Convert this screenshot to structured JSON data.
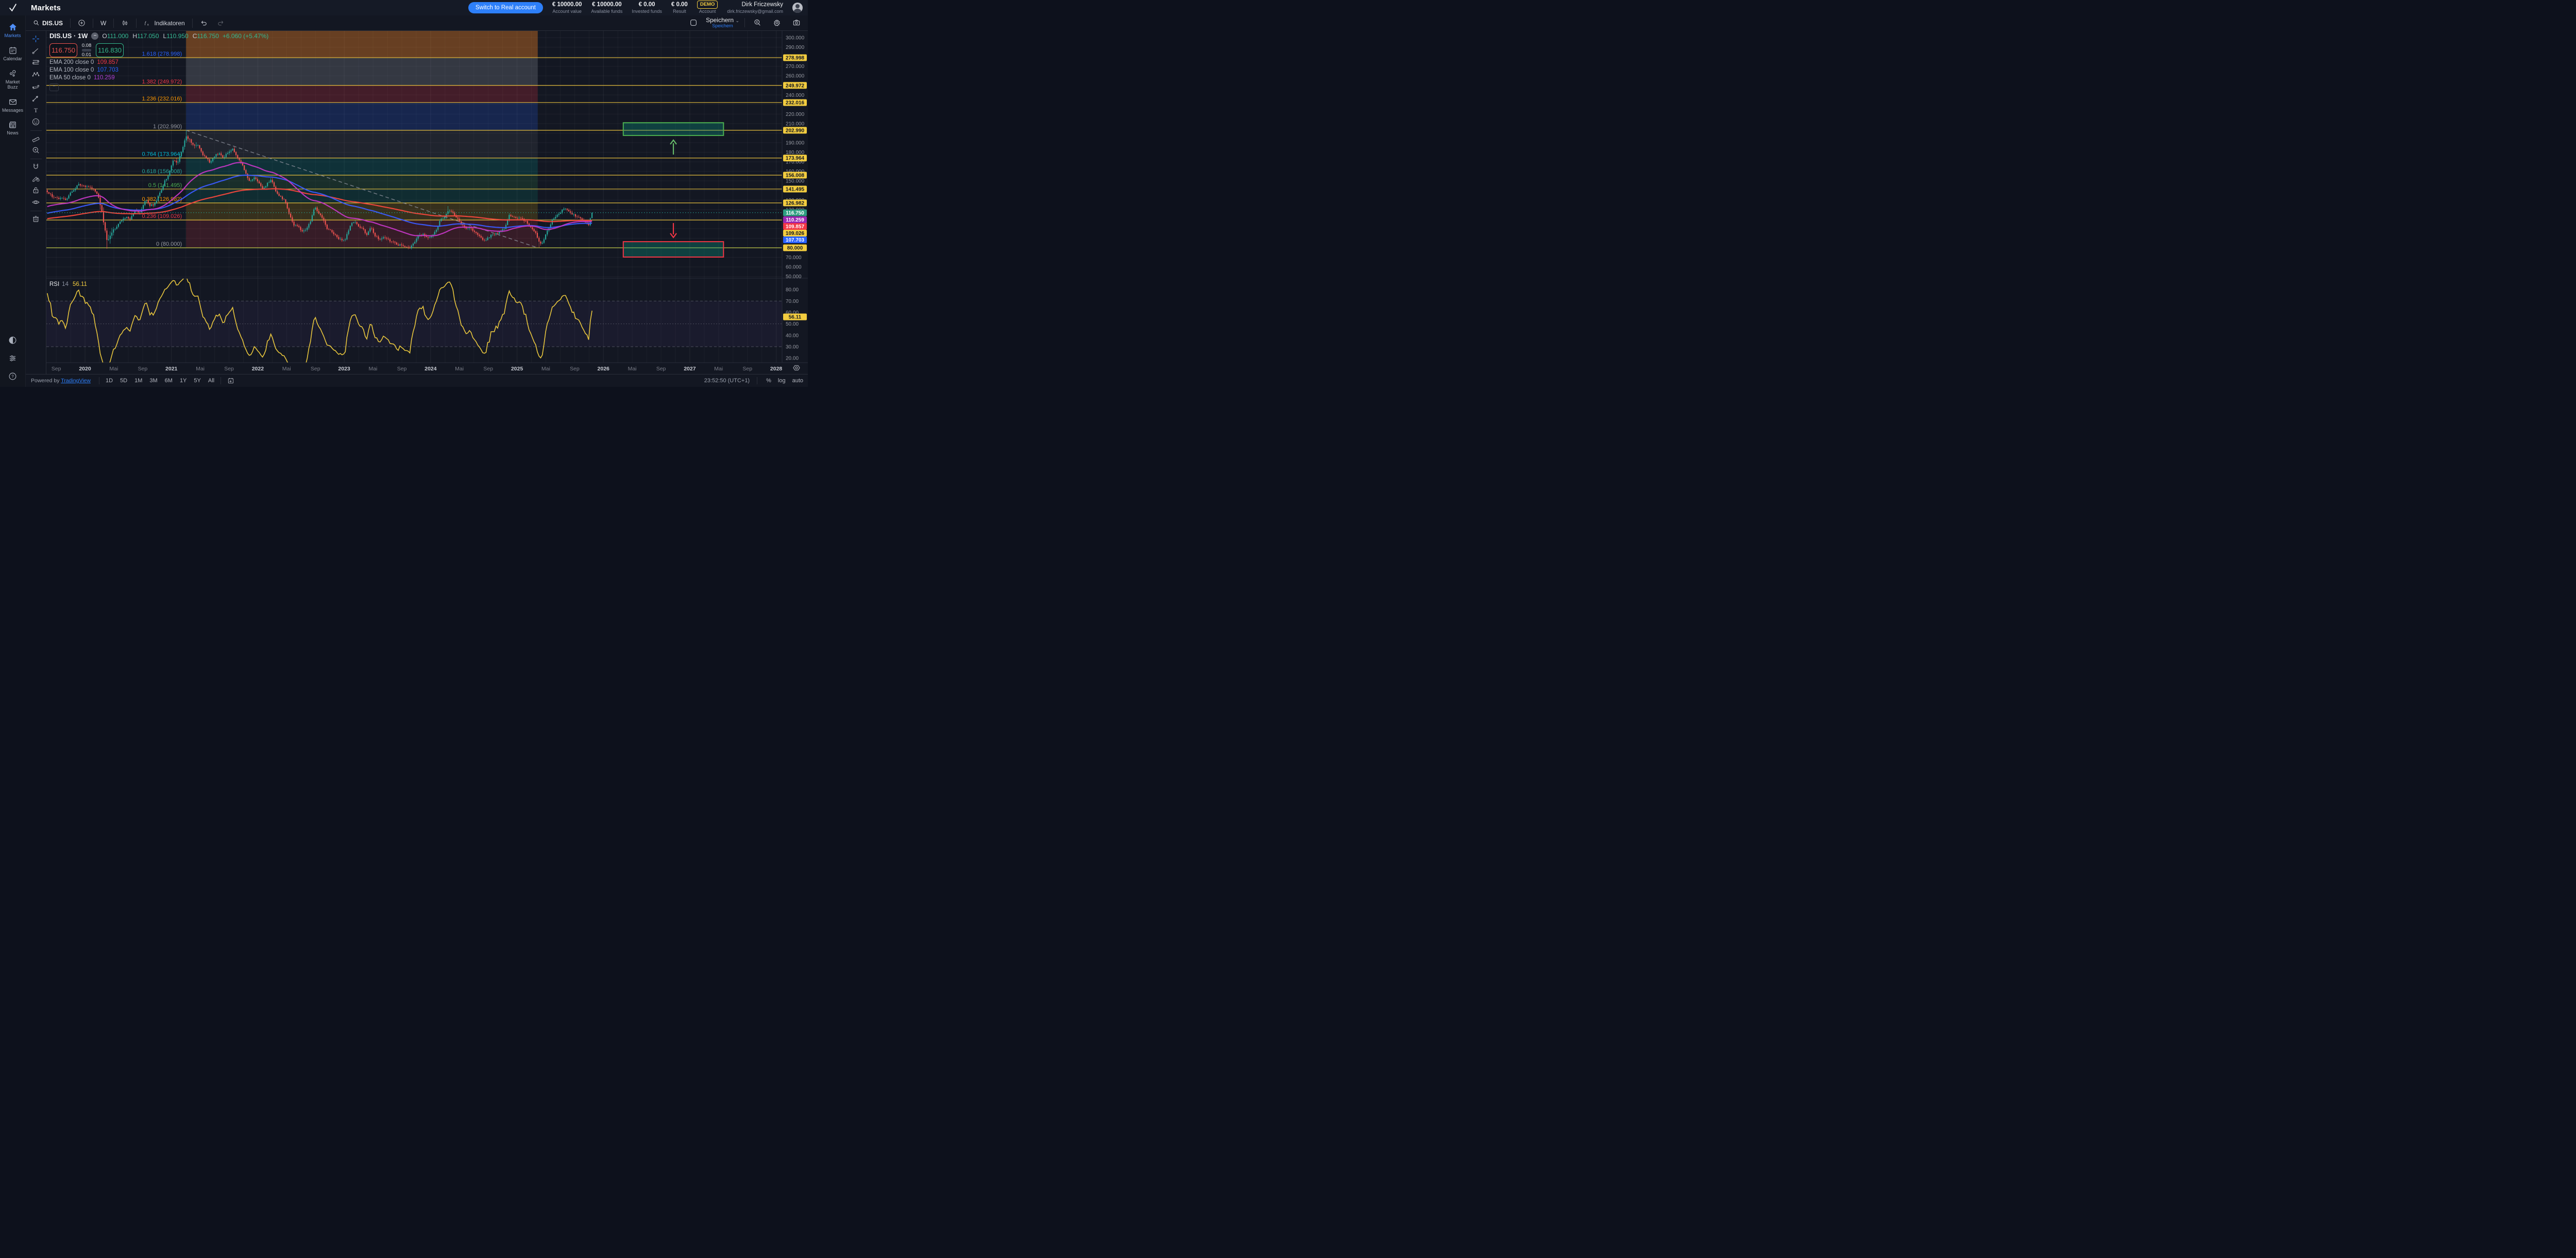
{
  "app": {
    "title": "Markets"
  },
  "header": {
    "switch_button": "Switch to Real account",
    "stats": [
      {
        "value": "€ 10000.00",
        "label": "Account value"
      },
      {
        "value": "€ 10000.00",
        "label": "Available funds"
      },
      {
        "value": "€ 0.00",
        "label": "Invested funds"
      },
      {
        "value": "€ 0.00",
        "label": "Result"
      }
    ],
    "demo_badge": "DEMO",
    "demo_label": "Account",
    "user": {
      "name": "Dirk Friczewsky",
      "email": "dirk.friczewsky@gmail.com"
    }
  },
  "sidebar": {
    "items": [
      {
        "label": "Markets",
        "icon": "home",
        "active": true
      },
      {
        "label": "Calendar",
        "icon": "calendar",
        "active": false
      },
      {
        "label": "Market Buzz",
        "icon": "buzz",
        "active": false
      },
      {
        "label": "Messages",
        "icon": "envelope",
        "active": false
      },
      {
        "label": "News",
        "icon": "news",
        "active": false
      }
    ],
    "bottom_icons": [
      "theme-toggle",
      "preferences",
      "help"
    ]
  },
  "toolbar": {
    "symbol": "DIS.US",
    "interval": "W",
    "indicators_label": "Indikatoren",
    "save_label": "Speichern",
    "save_sub_label": "Speichern"
  },
  "legend": {
    "symbol": "DIS.US · 1W",
    "ohlc": [
      [
        "O",
        "111.000"
      ],
      [
        "H",
        "117.050"
      ],
      [
        "L",
        "110.950"
      ],
      [
        "C",
        "116.750"
      ]
    ],
    "change": "+6.060 (+5.47%)",
    "sell": "116.750",
    "buy": "116.830",
    "spread_top": "0.08",
    "spread_bottom": "0.01",
    "emas": [
      {
        "label": "EMA 200 close 0",
        "value": "109.857",
        "color": "#f23645"
      },
      {
        "label": "EMA 100 close 0",
        "value": "107.703",
        "color": "#2962ff"
      },
      {
        "label": "EMA 50 close 0",
        "value": "110.259",
        "color": "#b13fd4"
      }
    ]
  },
  "rsi_legend": {
    "name": "RSI",
    "period": "14",
    "value": "56.11"
  },
  "drawbar": {
    "tools": [
      "crosshair",
      "trend-line",
      "fib-retracement",
      "xabcd-pattern",
      "projection",
      "arrow-marker",
      "text",
      "emoji",
      "sep",
      "ruler",
      "zoom-in",
      "sep",
      "magnet",
      "drawing-mode",
      "lock-all",
      "hide-all",
      "sep",
      "remove-all"
    ]
  },
  "bottom": {
    "powered_prefix": "Powered by",
    "powered_link": "TradingView",
    "ranges": [
      "1D",
      "5D",
      "1M",
      "3M",
      "6M",
      "1Y",
      "5Y",
      "All"
    ],
    "clock": "23:52:50 (UTC+1)",
    "scale_buttons": [
      "%",
      "log",
      "auto"
    ]
  },
  "chart_data": {
    "type": "candlestick",
    "symbol": "DIS.US",
    "interval": "1W",
    "title": "Disney weekly chart with Fibonacci retracement, EMAs and RSI",
    "x_domain": [
      2019.55,
      2028.08
    ],
    "ylim_main": [
      48,
      308
    ],
    "up_color": "#26a69a",
    "down_color": "#ef5350",
    "grid": true,
    "last_price": 116.75,
    "last_price_color": "#26a69a",
    "price_ticks": [
      300,
      290,
      270,
      260,
      240,
      220,
      210,
      190,
      180,
      170,
      160,
      150,
      130,
      120,
      90,
      70,
      60,
      50
    ],
    "x_ticks": [
      {
        "t": 2019.667,
        "label": "Sep",
        "year": false
      },
      {
        "t": 2020,
        "label": "2020",
        "year": true
      },
      {
        "t": 2020.333,
        "label": "Mai",
        "year": false
      },
      {
        "t": 2020.667,
        "label": "Sep",
        "year": false
      },
      {
        "t": 2021,
        "label": "2021",
        "year": true
      },
      {
        "t": 2021.333,
        "label": "Mai",
        "year": false
      },
      {
        "t": 2021.667,
        "label": "Sep",
        "year": false
      },
      {
        "t": 2022,
        "label": "2022",
        "year": true
      },
      {
        "t": 2022.333,
        "label": "Mai",
        "year": false
      },
      {
        "t": 2022.667,
        "label": "Sep",
        "year": false
      },
      {
        "t": 2023,
        "label": "2023",
        "year": true
      },
      {
        "t": 2023.333,
        "label": "Mai",
        "year": false
      },
      {
        "t": 2023.667,
        "label": "Sep",
        "year": false
      },
      {
        "t": 2024,
        "label": "2024",
        "year": true
      },
      {
        "t": 2024.333,
        "label": "Mai",
        "year": false
      },
      {
        "t": 2024.667,
        "label": "Sep",
        "year": false
      },
      {
        "t": 2025,
        "label": "2025",
        "year": true
      },
      {
        "t": 2025.333,
        "label": "Mai",
        "year": false
      },
      {
        "t": 2025.667,
        "label": "Sep",
        "year": false
      },
      {
        "t": 2026,
        "label": "2026",
        "year": true
      },
      {
        "t": 2026.333,
        "label": "Mai",
        "year": false
      },
      {
        "t": 2026.667,
        "label": "Sep",
        "year": false
      },
      {
        "t": 2027,
        "label": "2027",
        "year": true
      },
      {
        "t": 2027.333,
        "label": "Mai",
        "year": false
      },
      {
        "t": 2027.667,
        "label": "Sep",
        "year": false
      },
      {
        "t": 2028,
        "label": "2028",
        "year": true
      }
    ],
    "fib": {
      "t1": 2021.17,
      "t2": 2025.24,
      "line_color": "#f0c63e",
      "levels": [
        {
          "label": "1.618 (278.998)",
          "price": 278.998,
          "color": "#2962ff"
        },
        {
          "label": "1.382 (249.972)",
          "price": 249.972,
          "color": "#f23645"
        },
        {
          "label": "1.236 (232.016)",
          "price": 232.016,
          "color": "#ff9800"
        },
        {
          "label": "1 (202.990)",
          "price": 202.99,
          "color": "#9598a1"
        },
        {
          "label": "0.764 (173.964)",
          "price": 173.964,
          "color": "#00bcd4"
        },
        {
          "label": "0.618 (156.008)",
          "price": 156.008,
          "color": "#26a69a"
        },
        {
          "label": "0.5 (141.495)",
          "price": 141.495,
          "color": "#4caf50"
        },
        {
          "label": "0.382 (126.982)",
          "price": 126.982,
          "color": "#ff9800"
        },
        {
          "label": "0.236 (109.026)",
          "price": 109.026,
          "color": "#f23645"
        },
        {
          "label": "0 (80.000)",
          "price": 80.0,
          "color": "#9598a1",
          "line_color": "#cbd34b"
        }
      ],
      "bands": [
        {
          "top": 308,
          "bottom": 278.998,
          "color": "rgba(230,126,34,0.40)"
        },
        {
          "top": 278.998,
          "bottom": 249.972,
          "color": "rgba(128,131,142,0.30)"
        },
        {
          "top": 249.972,
          "bottom": 232.016,
          "color": "rgba(242,54,69,0.22)"
        },
        {
          "top": 232.016,
          "bottom": 202.99,
          "color": "rgba(41,98,255,0.20)"
        },
        {
          "top": 202.99,
          "bottom": 173.964,
          "color": "rgba(128,131,142,0.12)"
        },
        {
          "top": 173.964,
          "bottom": 156.008,
          "color": "rgba(0,170,160,0.18)"
        },
        {
          "top": 156.008,
          "bottom": 141.495,
          "color": "rgba(60,170,90,0.16)"
        },
        {
          "top": 141.495,
          "bottom": 126.982,
          "color": "rgba(8,153,129,0.16)"
        },
        {
          "top": 126.982,
          "bottom": 109.026,
          "color": "rgba(255,193,7,0.15)"
        },
        {
          "top": 109.026,
          "bottom": 80.0,
          "color": "rgba(242,54,69,0.16)"
        }
      ]
    },
    "trendline": {
      "t1": 2021.17,
      "p1": 202.99,
      "t2": 2025.24,
      "p2": 80.0,
      "color": "#8b8f9a"
    },
    "shapes": {
      "green_box": {
        "t1": 2026.23,
        "t2": 2027.39,
        "p1": 197.6,
        "p2": 210.9,
        "stroke": "#4caf50",
        "fill": "rgba(8,153,129,0.32)"
      },
      "red_box": {
        "t1": 2026.23,
        "t2": 2027.39,
        "p1": 70.3,
        "p2": 86.4,
        "stroke": "#f23645",
        "fill": "rgba(8,153,129,0.32)"
      },
      "up_arrow": {
        "t": 2026.81,
        "p_from": 177.6,
        "p_to": 192.7,
        "color": "#66bb6a"
      },
      "down_arrow": {
        "t": 2026.81,
        "p_from": 105.9,
        "p_to": 90.8,
        "color": "#f23645"
      }
    },
    "emas": [
      {
        "period": 200,
        "color": "#f5483d",
        "last": 109.857
      },
      {
        "period": 100,
        "color": "#3b5bff",
        "last": 107.703
      },
      {
        "period": 50,
        "color": "#c437c4",
        "last": 110.259
      }
    ],
    "rsi": {
      "period": 14,
      "last": 56.11,
      "color": "#e8c63e",
      "bands": [
        70,
        50,
        30
      ],
      "ticks": [
        80,
        70,
        60,
        50,
        40,
        30,
        20
      ]
    },
    "axis_chips_stacked": [
      {
        "text": "116.750",
        "y": 353,
        "bg": "#2e9e81",
        "fg": "#ffffff"
      },
      {
        "text": "110.259",
        "y": 366.5,
        "bg": "#9c27b0",
        "fg": "#ffffff"
      },
      {
        "text": "109.857",
        "y": 379.5,
        "bg": "#f23645",
        "fg": "#ffffff"
      },
      {
        "text": "109.026",
        "y": 392.5,
        "bg": "#f2cc3f",
        "fg": "#131722"
      },
      {
        "text": "107.703",
        "y": 405.5,
        "bg": "#2962ff",
        "fg": "#ffffff"
      }
    ],
    "rsi_chip": {
      "text": "56.11",
      "bg": "#f2cc3f",
      "fg": "#131722"
    },
    "anchors": [
      [
        2015.5,
        102
      ],
      [
        2016.2,
        96
      ],
      [
        2016.8,
        99
      ],
      [
        2017.4,
        107
      ],
      [
        2018.0,
        104
      ],
      [
        2018.6,
        110
      ],
      [
        2019.0,
        111
      ],
      [
        2019.25,
        117
      ],
      [
        2019.35,
        133
      ],
      [
        2019.45,
        140
      ],
      [
        2019.54,
        141
      ],
      [
        2019.62,
        134
      ],
      [
        2019.7,
        131.5
      ],
      [
        2019.78,
        131
      ],
      [
        2019.84,
        138
      ],
      [
        2019.92,
        146
      ],
      [
        2019.98,
        145
      ],
      [
        2020.04,
        144
      ],
      [
        2020.1,
        141
      ],
      [
        2020.15,
        135
      ],
      [
        2020.19,
        120
      ],
      [
        2020.23,
        99
      ],
      [
        2020.26,
        86
      ],
      [
        2020.31,
        96
      ],
      [
        2020.36,
        102
      ],
      [
        2020.42,
        109
      ],
      [
        2020.48,
        113
      ],
      [
        2020.52,
        110
      ],
      [
        2020.58,
        119
      ],
      [
        2020.64,
        117
      ],
      [
        2020.7,
        130
      ],
      [
        2020.74,
        125
      ],
      [
        2020.8,
        124
      ],
      [
        2020.86,
        136
      ],
      [
        2020.92,
        149
      ],
      [
        2020.97,
        157
      ],
      [
        2021.02,
        172
      ],
      [
        2021.07,
        168
      ],
      [
        2021.12,
        182
      ],
      [
        2021.17,
        197
      ],
      [
        2021.21,
        193
      ],
      [
        2021.26,
        186
      ],
      [
        2021.31,
        188
      ],
      [
        2021.36,
        178
      ],
      [
        2021.41,
        174
      ],
      [
        2021.45,
        169
      ],
      [
        2021.5,
        176
      ],
      [
        2021.55,
        179
      ],
      [
        2021.6,
        173
      ],
      [
        2021.66,
        181
      ],
      [
        2021.71,
        184
      ],
      [
        2021.76,
        174
      ],
      [
        2021.81,
        169
      ],
      [
        2021.86,
        157
      ],
      [
        2021.91,
        149
      ],
      [
        2021.96,
        153
      ],
      [
        2022.01,
        149
      ],
      [
        2022.06,
        142
      ],
      [
        2022.11,
        147
      ],
      [
        2022.16,
        151
      ],
      [
        2022.21,
        139
      ],
      [
        2022.26,
        133
      ],
      [
        2022.31,
        130
      ],
      [
        2022.36,
        116
      ],
      [
        2022.41,
        104
      ],
      [
        2022.46,
        103
      ],
      [
        2022.51,
        96
      ],
      [
        2022.56,
        99
      ],
      [
        2022.61,
        107
      ],
      [
        2022.66,
        123
      ],
      [
        2022.7,
        117
      ],
      [
        2022.75,
        111
      ],
      [
        2022.8,
        100
      ],
      [
        2022.85,
        98
      ],
      [
        2022.9,
        93
      ],
      [
        2022.96,
        88
      ],
      [
        2023.01,
        89
      ],
      [
        2023.06,
        101
      ],
      [
        2023.11,
        108
      ],
      [
        2023.16,
        103
      ],
      [
        2023.21,
        100
      ],
      [
        2023.26,
        94
      ],
      [
        2023.31,
        101
      ],
      [
        2023.36,
        92
      ],
      [
        2023.41,
        89
      ],
      [
        2023.46,
        92
      ],
      [
        2023.51,
        88
      ],
      [
        2023.56,
        86
      ],
      [
        2023.61,
        84
      ],
      [
        2023.66,
        82
      ],
      [
        2023.71,
        81
      ],
      [
        2023.76,
        80.5
      ],
      [
        2023.81,
        85
      ],
      [
        2023.86,
        93
      ],
      [
        2023.91,
        94
      ],
      [
        2023.96,
        90
      ],
      [
        2024.01,
        92
      ],
      [
        2024.06,
        97
      ],
      [
        2024.11,
        109
      ],
      [
        2024.16,
        113
      ],
      [
        2024.21,
        119
      ],
      [
        2024.26,
        116
      ],
      [
        2024.31,
        111
      ],
      [
        2024.36,
        104
      ],
      [
        2024.41,
        100
      ],
      [
        2024.46,
        102
      ],
      [
        2024.51,
        96
      ],
      [
        2024.56,
        92.5
      ],
      [
        2024.61,
        87
      ],
      [
        2024.66,
        90
      ],
      [
        2024.71,
        94
      ],
      [
        2024.76,
        95
      ],
      [
        2024.81,
        96.5
      ],
      [
        2024.86,
        101
      ],
      [
        2024.91,
        114
      ],
      [
        2024.96,
        112
      ],
      [
        2025.01,
        111
      ],
      [
        2025.06,
        110
      ],
      [
        2025.11,
        107
      ],
      [
        2025.16,
        101
      ],
      [
        2025.21,
        97
      ],
      [
        2025.26,
        86
      ],
      [
        2025.29,
        84
      ],
      [
        2025.33,
        93
      ],
      [
        2025.37,
        101
      ],
      [
        2025.41,
        110
      ],
      [
        2025.46,
        113
      ],
      [
        2025.51,
        118
      ],
      [
        2025.56,
        122
      ],
      [
        2025.61,
        117
      ],
      [
        2025.66,
        114
      ],
      [
        2025.71,
        112
      ],
      [
        2025.76,
        109
      ],
      [
        2025.8,
        106
      ],
      [
        2025.83,
        104.5
      ],
      [
        2025.855,
        110.7
      ],
      [
        2025.885,
        116.75
      ]
    ],
    "wick_overrides": [
      {
        "t": 2020.26,
        "l": 79.0
      },
      {
        "t": 2021.17,
        "h": 202.99
      },
      {
        "t": 2023.76,
        "l": 78.9
      },
      {
        "t": 2024.21,
        "h": 123.7
      },
      {
        "t": 2025.26,
        "l": 80.3
      }
    ],
    "last_candle": {
      "o": 111.0,
      "h": 117.05,
      "l": 110.95,
      "c": 116.75
    }
  }
}
